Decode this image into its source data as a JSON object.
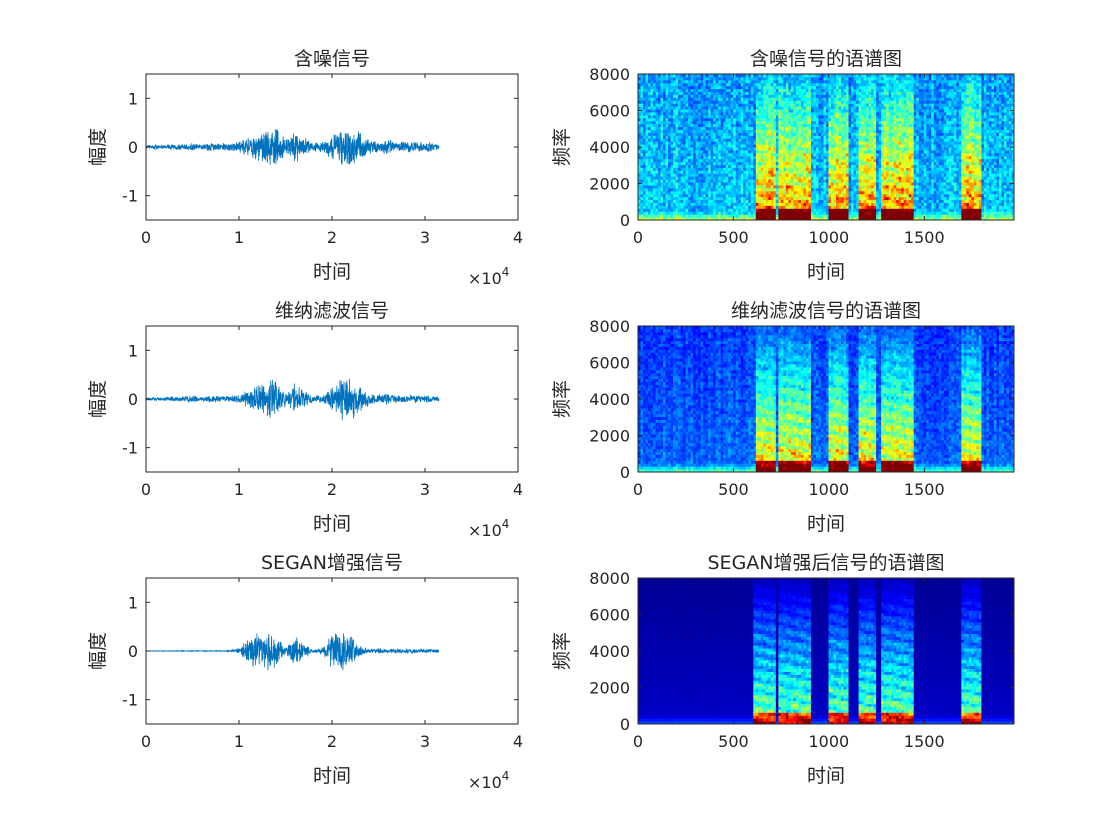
{
  "figure": {
    "background": "#ffffff",
    "waveform_color": "#0072BD",
    "axis_color": "#262626",
    "colormap": "jet"
  },
  "chart_data": [
    {
      "id": "noisy_wave",
      "type": "line",
      "title": "含噪信号",
      "xlabel": "时间",
      "ylabel": "幅度",
      "xlim": [
        0,
        40000
      ],
      "ylim": [
        -1.5,
        1.5
      ],
      "xticks": [
        "0",
        "1",
        "2",
        "3",
        "4"
      ],
      "yticks": [
        "1",
        "0",
        "-1"
      ],
      "x_exponent": "×10",
      "x_exponent_power": "4",
      "signal_length": 31500,
      "envelope": [
        [
          0,
          0.04
        ],
        [
          1000,
          0.06
        ],
        [
          2000,
          0.05
        ],
        [
          3000,
          0.07
        ],
        [
          4000,
          0.06
        ],
        [
          5000,
          0.1
        ],
        [
          6000,
          0.06
        ],
        [
          7000,
          0.1
        ],
        [
          8000,
          0.08
        ],
        [
          9000,
          0.1
        ],
        [
          10000,
          0.12
        ],
        [
          11000,
          0.22
        ],
        [
          12000,
          0.3
        ],
        [
          13000,
          0.4
        ],
        [
          13500,
          0.48
        ],
        [
          14000,
          0.44
        ],
        [
          15000,
          0.2
        ],
        [
          16000,
          0.38
        ],
        [
          17000,
          0.22
        ],
        [
          18000,
          0.1
        ],
        [
          19000,
          0.12
        ],
        [
          20000,
          0.28
        ],
        [
          21000,
          0.4
        ],
        [
          22000,
          0.46
        ],
        [
          23000,
          0.35
        ],
        [
          24000,
          0.16
        ],
        [
          25000,
          0.12
        ],
        [
          26000,
          0.18
        ],
        [
          27000,
          0.1
        ],
        [
          28000,
          0.14
        ],
        [
          29000,
          0.1
        ],
        [
          30000,
          0.12
        ],
        [
          31500,
          0.08
        ]
      ]
    },
    {
      "id": "noisy_spec",
      "type": "heatmap",
      "title": "含噪信号的语谱图",
      "xlabel": "时间",
      "ylabel": "频率",
      "xlim": [
        0,
        1970
      ],
      "ylim": [
        0,
        8000
      ],
      "xticks": [
        "0",
        "500",
        "1000",
        "1500"
      ],
      "yticks": [
        "8000",
        "6000",
        "4000",
        "2000",
        "0"
      ],
      "noise_floor": 0.28,
      "speech_segments": [
        [
          620,
          720
        ],
        [
          740,
          900
        ],
        [
          1000,
          1100
        ],
        [
          1150,
          1250
        ],
        [
          1280,
          1450
        ],
        [
          1700,
          1800
        ]
      ]
    },
    {
      "id": "wiener_wave",
      "type": "line",
      "title": "维纳滤波信号",
      "xlabel": "时间",
      "ylabel": "幅度",
      "xlim": [
        0,
        40000
      ],
      "ylim": [
        -1.5,
        1.5
      ],
      "xticks": [
        "0",
        "1",
        "2",
        "3",
        "4"
      ],
      "yticks": [
        "1",
        "0",
        "-1"
      ],
      "x_exponent": "×10",
      "x_exponent_power": "4",
      "signal_length": 31500,
      "envelope": [
        [
          0,
          0.03
        ],
        [
          1000,
          0.04
        ],
        [
          2000,
          0.04
        ],
        [
          3000,
          0.06
        ],
        [
          4000,
          0.05
        ],
        [
          5000,
          0.09
        ],
        [
          6000,
          0.05
        ],
        [
          7000,
          0.08
        ],
        [
          8000,
          0.06
        ],
        [
          9000,
          0.07
        ],
        [
          10000,
          0.09
        ],
        [
          11000,
          0.2
        ],
        [
          12000,
          0.32
        ],
        [
          13000,
          0.42
        ],
        [
          13500,
          0.52
        ],
        [
          14000,
          0.46
        ],
        [
          15000,
          0.18
        ],
        [
          16000,
          0.34
        ],
        [
          17000,
          0.2
        ],
        [
          18000,
          0.08
        ],
        [
          19000,
          0.1
        ],
        [
          20000,
          0.26
        ],
        [
          21000,
          0.44
        ],
        [
          22000,
          0.5
        ],
        [
          23000,
          0.33
        ],
        [
          24000,
          0.12
        ],
        [
          25000,
          0.09
        ],
        [
          26000,
          0.14
        ],
        [
          27000,
          0.08
        ],
        [
          28000,
          0.1
        ],
        [
          29000,
          0.08
        ],
        [
          30000,
          0.09
        ],
        [
          31500,
          0.06
        ]
      ]
    },
    {
      "id": "wiener_spec",
      "type": "heatmap",
      "title": "维纳滤波信号的语谱图",
      "xlabel": "时间",
      "ylabel": "频率",
      "xlim": [
        0,
        1970
      ],
      "ylim": [
        0,
        8000
      ],
      "xticks": [
        "0",
        "500",
        "1000",
        "1500"
      ],
      "yticks": [
        "8000",
        "6000",
        "4000",
        "2000",
        "0"
      ],
      "noise_floor": 0.18,
      "speech_segments": [
        [
          620,
          720
        ],
        [
          740,
          900
        ],
        [
          1000,
          1100
        ],
        [
          1150,
          1250
        ],
        [
          1280,
          1450
        ],
        [
          1700,
          1800
        ]
      ]
    },
    {
      "id": "segan_wave",
      "type": "line",
      "title": "SEGAN增强信号",
      "xlabel": "时间",
      "ylabel": "幅度",
      "xlim": [
        0,
        40000
      ],
      "ylim": [
        -1.5,
        1.5
      ],
      "xticks": [
        "0",
        "1",
        "2",
        "3",
        "4"
      ],
      "yticks": [
        "1",
        "0",
        "-1"
      ],
      "x_exponent": "×10",
      "x_exponent_power": "4",
      "signal_length": 31500,
      "envelope": [
        [
          0,
          0.005
        ],
        [
          5000,
          0.008
        ],
        [
          9000,
          0.01
        ],
        [
          10000,
          0.08
        ],
        [
          11000,
          0.3
        ],
        [
          12000,
          0.4
        ],
        [
          13000,
          0.45
        ],
        [
          13500,
          0.5
        ],
        [
          14000,
          0.42
        ],
        [
          15000,
          0.06
        ],
        [
          16000,
          0.38
        ],
        [
          17000,
          0.18
        ],
        [
          18000,
          0.02
        ],
        [
          19000,
          0.1
        ],
        [
          20000,
          0.36
        ],
        [
          21000,
          0.44
        ],
        [
          22000,
          0.4
        ],
        [
          23000,
          0.12
        ],
        [
          24000,
          0.04
        ],
        [
          25000,
          0.06
        ],
        [
          26000,
          0.04
        ],
        [
          27000,
          0.06
        ],
        [
          28000,
          0.05
        ],
        [
          29000,
          0.04
        ],
        [
          30000,
          0.05
        ],
        [
          31500,
          0.03
        ]
      ]
    },
    {
      "id": "segan_spec",
      "type": "heatmap",
      "title": "SEGAN增强后信号的语谱图",
      "xlabel": "时间",
      "ylabel": "频率",
      "xlim": [
        0,
        1970
      ],
      "ylim": [
        0,
        8000
      ],
      "xticks": [
        "0",
        "500",
        "1000",
        "1500"
      ],
      "yticks": [
        "8000",
        "6000",
        "4000",
        "2000",
        "0"
      ],
      "noise_floor": 0.02,
      "speech_segments": [
        [
          610,
          720
        ],
        [
          740,
          900
        ],
        [
          1000,
          1100
        ],
        [
          1150,
          1250
        ],
        [
          1280,
          1450
        ],
        [
          1700,
          1800
        ]
      ]
    }
  ]
}
